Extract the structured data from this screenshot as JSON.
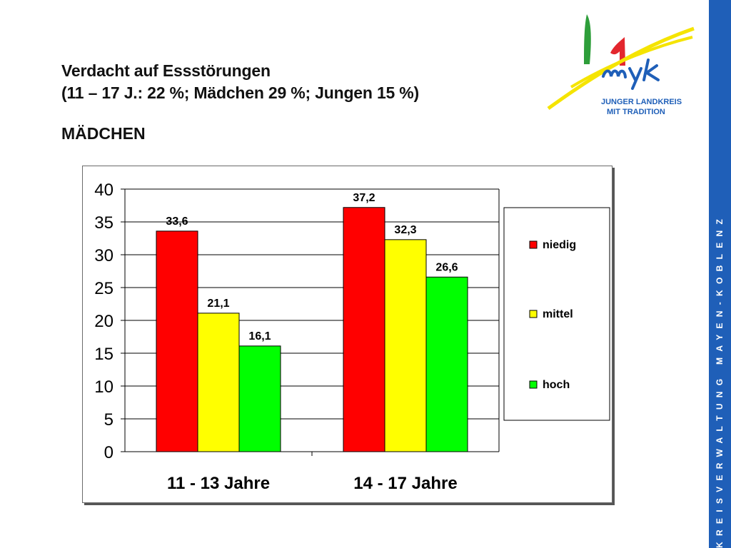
{
  "header": {
    "title_line1": "Verdacht auf Essstörungen",
    "title_line2": "(11 – 17 J.: 22 %; Mädchen 29 %; Jungen 15 %)",
    "subtitle": "MÄDCHEN"
  },
  "logo": {
    "text_line1": "JUNGER LANDKREIS",
    "text_line2": "MIT TRADITION",
    "wordmark": "myk",
    "colors": {
      "green": "#2e9e3a",
      "red": "#e3262d",
      "yellow": "#f5e400",
      "blue": "#1f5fb8"
    }
  },
  "sidebar": {
    "text": "KREISVERWALTUNG MAYEN-KOBLENZ",
    "color": "#1f5fb8"
  },
  "chart_data": {
    "type": "bar",
    "categories": [
      "11 - 13 Jahre",
      "14 - 17 Jahre"
    ],
    "series": [
      {
        "name": "niedig",
        "color": "#ff0000",
        "values": [
          33.6,
          37.2
        ],
        "labels": [
          "33,6",
          "37,2"
        ]
      },
      {
        "name": "mittel",
        "color": "#ffff00",
        "values": [
          21.1,
          32.3
        ],
        "labels": [
          "21,1",
          "32,3"
        ]
      },
      {
        "name": "hoch",
        "color": "#00ff00",
        "values": [
          16.1,
          26.6
        ],
        "labels": [
          "16,1",
          "26,6"
        ]
      }
    ],
    "ylim": [
      0,
      40
    ],
    "yticks": [
      "0",
      "5",
      "10",
      "15",
      "20",
      "25",
      "30",
      "35",
      "40"
    ],
    "ytick_values": [
      0,
      5,
      10,
      15,
      20,
      25,
      30,
      35,
      40
    ],
    "grid": true,
    "legend_position": "right"
  }
}
